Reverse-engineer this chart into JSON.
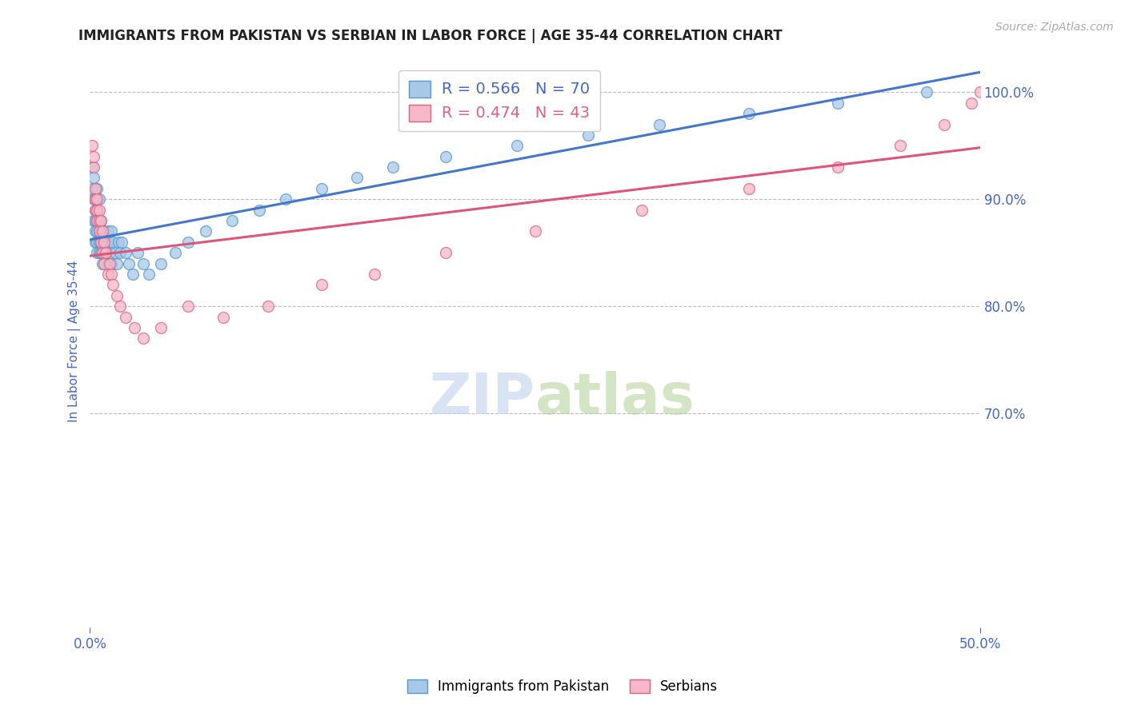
{
  "title": "IMMIGRANTS FROM PAKISTAN VS SERBIAN IN LABOR FORCE | AGE 35-44 CORRELATION CHART",
  "source": "Source: ZipAtlas.com",
  "ylabel": "In Labor Force | Age 35-44",
  "xlim": [
    0.0,
    0.5
  ],
  "ylim": [
    0.5,
    1.035
  ],
  "pakistan_color": "#a8c8e8",
  "pakistan_edge": "#5599cc",
  "serbian_color": "#f4b8c8",
  "serbian_edge": "#e06080",
  "pakistan_R": 0.566,
  "pakistan_N": 70,
  "serbian_R": 0.474,
  "serbian_N": 43,
  "trend_pakistan_color": "#4477cc",
  "trend_serbian_color": "#dd5577",
  "grid_color": "#bbbbbb",
  "text_color": "#4466cc",
  "legend_label_pakistan": "Immigrants from Pakistan",
  "legend_label_serbian": "Serbians",
  "pakistan_x": [
    0.001,
    0.001,
    0.002,
    0.002,
    0.002,
    0.003,
    0.003,
    0.003,
    0.003,
    0.003,
    0.004,
    0.004,
    0.004,
    0.004,
    0.004,
    0.004,
    0.005,
    0.005,
    0.005,
    0.005,
    0.005,
    0.006,
    0.006,
    0.006,
    0.006,
    0.007,
    0.007,
    0.007,
    0.007,
    0.008,
    0.008,
    0.008,
    0.009,
    0.009,
    0.01,
    0.01,
    0.01,
    0.011,
    0.011,
    0.012,
    0.012,
    0.013,
    0.014,
    0.015,
    0.016,
    0.017,
    0.018,
    0.02,
    0.022,
    0.024,
    0.027,
    0.03,
    0.033,
    0.04,
    0.048,
    0.055,
    0.065,
    0.08,
    0.095,
    0.11,
    0.13,
    0.15,
    0.17,
    0.2,
    0.24,
    0.28,
    0.32,
    0.37,
    0.42,
    0.47
  ],
  "pakistan_y": [
    0.93,
    0.91,
    0.92,
    0.9,
    0.88,
    0.89,
    0.88,
    0.87,
    0.86,
    0.9,
    0.91,
    0.89,
    0.88,
    0.87,
    0.86,
    0.85,
    0.9,
    0.88,
    0.87,
    0.86,
    0.85,
    0.88,
    0.87,
    0.86,
    0.85,
    0.87,
    0.86,
    0.85,
    0.84,
    0.87,
    0.86,
    0.85,
    0.86,
    0.85,
    0.87,
    0.86,
    0.84,
    0.86,
    0.85,
    0.87,
    0.84,
    0.86,
    0.85,
    0.84,
    0.86,
    0.85,
    0.86,
    0.85,
    0.84,
    0.83,
    0.85,
    0.84,
    0.83,
    0.84,
    0.85,
    0.86,
    0.87,
    0.88,
    0.89,
    0.9,
    0.91,
    0.92,
    0.93,
    0.94,
    0.95,
    0.96,
    0.97,
    0.98,
    0.99,
    1.0
  ],
  "serbian_x": [
    0.001,
    0.002,
    0.002,
    0.003,
    0.003,
    0.003,
    0.004,
    0.004,
    0.004,
    0.005,
    0.005,
    0.005,
    0.006,
    0.006,
    0.007,
    0.007,
    0.008,
    0.008,
    0.009,
    0.01,
    0.011,
    0.012,
    0.013,
    0.015,
    0.017,
    0.02,
    0.025,
    0.03,
    0.04,
    0.055,
    0.075,
    0.1,
    0.13,
    0.16,
    0.2,
    0.25,
    0.31,
    0.37,
    0.42,
    0.455,
    0.48,
    0.495,
    0.5
  ],
  "serbian_y": [
    0.95,
    0.93,
    0.94,
    0.91,
    0.9,
    0.89,
    0.9,
    0.89,
    0.88,
    0.89,
    0.88,
    0.87,
    0.88,
    0.86,
    0.87,
    0.85,
    0.86,
    0.84,
    0.85,
    0.83,
    0.84,
    0.83,
    0.82,
    0.81,
    0.8,
    0.79,
    0.78,
    0.77,
    0.78,
    0.8,
    0.79,
    0.8,
    0.82,
    0.83,
    0.85,
    0.87,
    0.89,
    0.91,
    0.93,
    0.95,
    0.97,
    0.99,
    1.0
  ]
}
